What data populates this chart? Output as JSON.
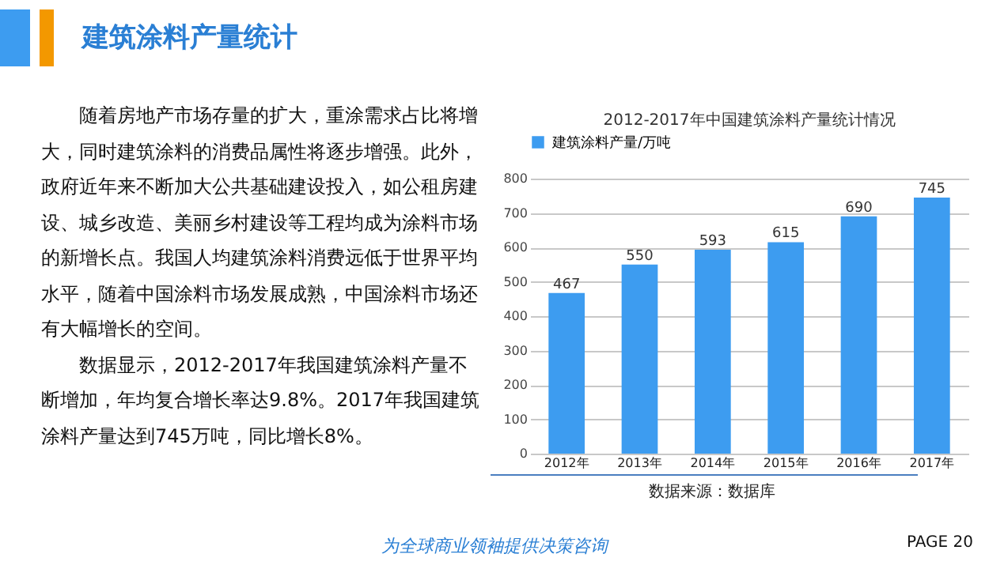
{
  "chart_data": {
    "type": "bar",
    "title": "2012-2017年中国建筑涂料产量统计情况",
    "categories": [
      "2012年",
      "2013年",
      "2014年",
      "2015年",
      "2016年",
      "2017年"
    ],
    "series": [
      {
        "name": "建筑涂料产量/万吨",
        "color": "#3d9cf0",
        "values": [
          467,
          550,
          593,
          615,
          690,
          745
        ]
      }
    ],
    "ylim": [
      0,
      800
    ],
    "yticks": [
      0,
      100,
      200,
      300,
      400,
      500,
      600,
      700,
      800
    ],
    "grid": "y",
    "legend": "top",
    "data_labels": true,
    "annotations": [
      "建筑涂料产量统计",
      "随着房地产市场存量的扩大，重涂需求占比将增大，同时建筑涂料的消费品属性将逐步增强。此外，政府近年来不断加大公共基础建设投入，如公租房建设、城乡改造、美丽乡村建设等工程均成为涂料市场的新增长点。我国人均建筑涂料消费远低于世界平均水平，随着中国涂料市场发展成熟，中国涂料市场还有大幅增长的空间。",
      "数据显示，2012-2017年我国建筑涂料产量不断增加，年均复合增长率达9.8%。2017年我国建筑涂料产量达到745万吨，同比增长8%。",
      "数据来源：数据库",
      "为全球商业领袖提供决策咨询",
      "PAGE  20"
    ]
  }
}
